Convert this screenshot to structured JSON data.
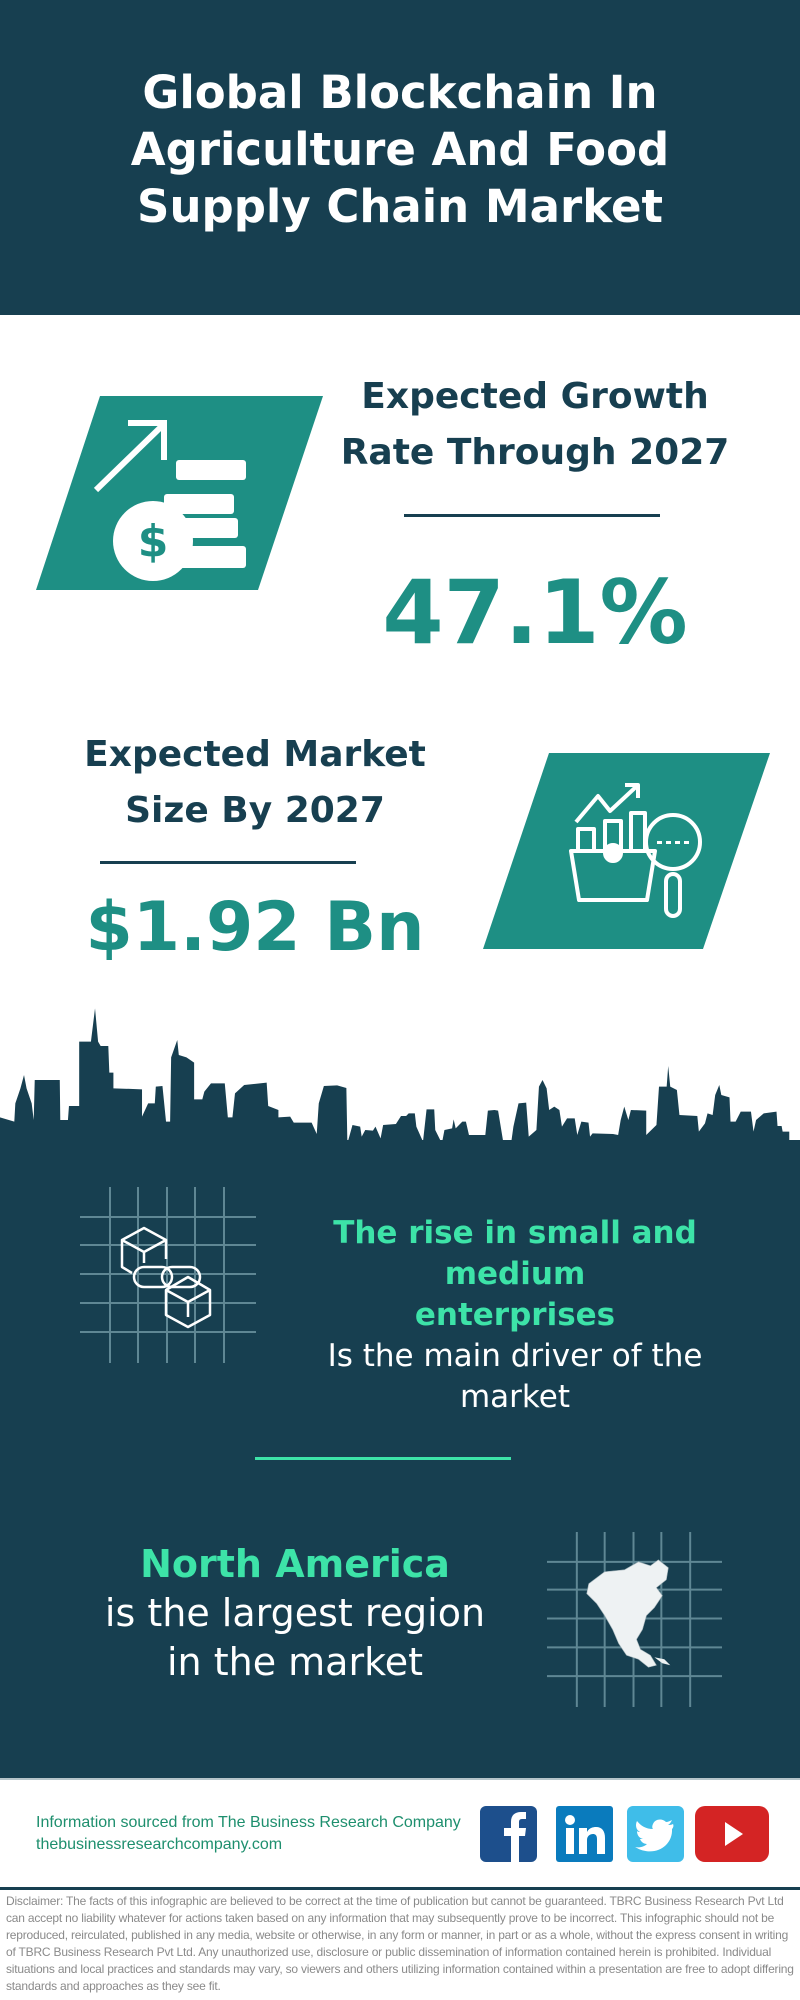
{
  "header": {
    "title_lines": [
      "Global Blockchain In",
      "Agriculture And Food",
      "Supply Chain Market"
    ]
  },
  "growth": {
    "label_lines": [
      "Expected Growth",
      "Rate Through 2027"
    ],
    "value": "47.1%",
    "icon": "coins-growth-icon"
  },
  "market_size": {
    "label_lines": [
      "Expected Market",
      "Size By 2027"
    ],
    "value": "$1.92 Bn",
    "icon": "market-analysis-icon"
  },
  "driver": {
    "highlight_lines": [
      "The rise in small and medium",
      "enterprises"
    ],
    "text_lines": [
      "Is the main driver of the",
      "market"
    ],
    "icon": "blockchain-icon"
  },
  "region": {
    "highlight": "North America",
    "text_lines": [
      "is the largest region",
      "in the market"
    ],
    "icon": "north-america-map-icon"
  },
  "footer": {
    "source": "Information sourced from The Business Research Company",
    "website": "thebusinessresearchcompany.com",
    "social": [
      "facebook",
      "linkedin",
      "twitter",
      "youtube"
    ]
  },
  "disclaimer": "Disclaimer: The facts of this infographic are believed to be correct at the time of publication but cannot be guaranteed. TBRC Business Research Pvt Ltd can accept no liability whatever for actions taken based on any information that may subsequently prove to be incorrect. This infographic should not be reproduced, reirculated, published in any media, website or otherwise, in any form or manner, in part or as a whole, without the express consent in writing of TBRC Business Research Pvt Ltd. Any unauthorized use, disclosure or public dissemination of information contained herein is prohibited. Individual situations and local practices and standards may vary, so viewers and others utilizing information contained within a presentation are free to adopt differing standards and approaches as they see fit.",
  "colors": {
    "dark": "#173f50",
    "teal": "#1e8f84",
    "green": "#3de3a8"
  }
}
